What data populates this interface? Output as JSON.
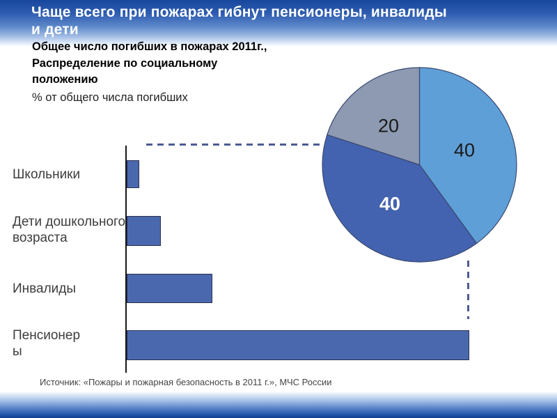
{
  "slide": {
    "title_lines": [
      "Чаще всего при пожарах гибнут пенсионеры, инвалиды",
      "и дети"
    ],
    "subtitle_bold_lines": [
      "Общее число погибших в пожарах 2011г.,",
      "Распределение по социальному",
      "положению"
    ],
    "subtitle_note": "% от общего числа погибших",
    "source": "Источник: «Пожары и пожарная безопасность в 2011 г.», МЧС России"
  },
  "theme": {
    "header_blue_top": "#17479c",
    "header_blue_bottom": "#ffffff",
    "footer_blue_bottom": "#123f90",
    "callout_dash_color": "#4c5b92",
    "title_color": "#ffffff",
    "text_color": "#3d3d3d"
  },
  "chart_data": [
    {
      "type": "bar",
      "orientation": "horizontal",
      "title": "Общее число погибших в пожарах 2011г., Распределение по социальному положению",
      "xlabel": "% от общего числа погибших",
      "categories": [
        "Школьники",
        "Дети дошкольного возраста",
        "Инвалиды",
        "Пенсионеры"
      ],
      "category_label_lines": [
        [
          "Школьники"
        ],
        [
          "Дети дошкольного",
          "возраста"
        ],
        [
          "Инвалиды"
        ],
        [
          "Пенсионер",
          "ы"
        ]
      ],
      "values": [
        1.5,
        4,
        10,
        40
      ],
      "xlim": [
        0,
        40
      ],
      "bar_color": "#4a68ae",
      "grid": false,
      "axis_labels_shown": false
    },
    {
      "type": "pie",
      "start_angle_deg": 0,
      "direction": "clockwise",
      "slices": [
        {
          "label": "40",
          "value": 40,
          "color": "#5f9fd8",
          "label_color": "#1a1a1a"
        },
        {
          "label": "40",
          "value": 40,
          "color": "#4363b0",
          "label_color": "#ffffff"
        },
        {
          "label": "20",
          "value": 20,
          "color": "#8e9ab2",
          "label_color": "#1a1a1a"
        }
      ]
    }
  ]
}
